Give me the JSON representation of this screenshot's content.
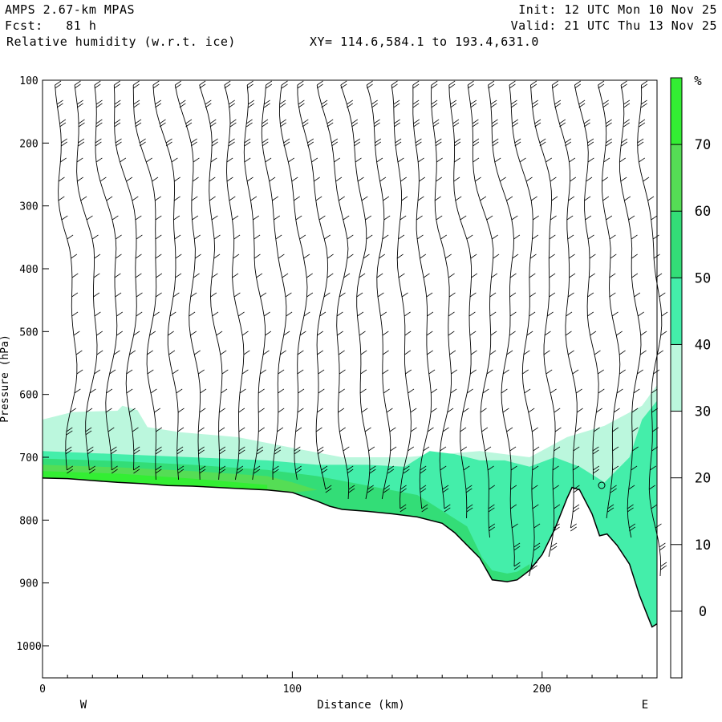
{
  "header": {
    "model": "AMPS 2.67-km MPAS",
    "fcst": "Fcst:   81 h",
    "field": "Relative humidity (w.r.t. ice)",
    "xy": "XY= 114.6,584.1 to 193.4,631.0",
    "init": "Init: 12 UTC Mon 10 Nov 25",
    "valid": "Valid: 21 UTC Thu 13 Nov 25"
  },
  "chart_data": {
    "type": "cross-section",
    "title": "Relative humidity (w.r.t. ice)",
    "xlabel": "Distance (km)",
    "ylabel": "Pressure (hPa)",
    "x_range": [
      0,
      246
    ],
    "y_range": [
      100,
      1050
    ],
    "y_scale": "inverted",
    "x_ticks": [
      "0",
      "100",
      "200"
    ],
    "x_tick_values": [
      0,
      100,
      200
    ],
    "y_ticks": [
      "100",
      "200",
      "300",
      "400",
      "500",
      "600",
      "700",
      "800",
      "900",
      "1000"
    ],
    "y_tick_values": [
      100,
      200,
      300,
      400,
      500,
      600,
      700,
      800,
      900,
      1000
    ],
    "left_end_label": "W",
    "right_end_label": "E",
    "colorbar": {
      "unit": "%",
      "labels": [
        "70",
        "60",
        "50",
        "40",
        "30",
        "20",
        "10",
        "0"
      ],
      "label_values": [
        70,
        60,
        50,
        40,
        30,
        20,
        10,
        0
      ],
      "bins": [
        {
          "min": 70,
          "max": 80,
          "color": "#33ee33"
        },
        {
          "min": 60,
          "max": 70,
          "color": "#55dd55"
        },
        {
          "min": 50,
          "max": 60,
          "color": "#33dd77"
        },
        {
          "min": 40,
          "max": 50,
          "color": "#44eeaa"
        },
        {
          "min": 30,
          "max": 40,
          "color": "#bbf7dd"
        },
        {
          "min": -10,
          "max": 30,
          "color": "#ffffff"
        }
      ]
    },
    "terrain": [
      [
        0,
        733
      ],
      [
        10,
        734
      ],
      [
        20,
        737
      ],
      [
        30,
        740
      ],
      [
        40,
        742
      ],
      [
        50,
        745
      ],
      [
        60,
        746
      ],
      [
        70,
        748
      ],
      [
        80,
        750
      ],
      [
        90,
        752
      ],
      [
        100,
        756
      ],
      [
        105,
        763
      ],
      [
        110,
        770
      ],
      [
        115,
        778
      ],
      [
        120,
        783
      ],
      [
        130,
        786
      ],
      [
        140,
        790
      ],
      [
        150,
        795
      ],
      [
        160,
        805
      ],
      [
        165,
        820
      ],
      [
        170,
        840
      ],
      [
        175,
        860
      ],
      [
        180,
        895
      ],
      [
        186,
        898
      ],
      [
        190,
        895
      ],
      [
        195,
        880
      ],
      [
        200,
        855
      ],
      [
        205,
        815
      ],
      [
        210,
        765
      ],
      [
        212,
        748
      ],
      [
        215,
        752
      ],
      [
        220,
        790
      ],
      [
        223,
        825
      ],
      [
        226,
        822
      ],
      [
        230,
        840
      ],
      [
        235,
        870
      ],
      [
        239,
        920
      ],
      [
        242,
        950
      ],
      [
        244,
        970
      ],
      [
        246,
        965
      ]
    ],
    "rh_regions": [
      {
        "rh": 30,
        "polygon": [
          [
            0,
            640
          ],
          [
            12,
            628
          ],
          [
            30,
            626
          ],
          [
            32,
            618
          ],
          [
            38,
            625
          ],
          [
            42,
            652
          ],
          [
            55,
            660
          ],
          [
            78,
            668
          ],
          [
            100,
            685
          ],
          [
            120,
            700
          ],
          [
            145,
            700
          ],
          [
            175,
            690
          ],
          [
            195,
            700
          ],
          [
            210,
            668
          ],
          [
            225,
            650
          ],
          [
            240,
            618
          ],
          [
            246,
            585
          ],
          [
            246,
            965
          ],
          [
            244,
            970
          ],
          [
            242,
            950
          ],
          [
            239,
            920
          ],
          [
            235,
            870
          ],
          [
            230,
            840
          ],
          [
            226,
            822
          ],
          [
            223,
            825
          ],
          [
            220,
            790
          ],
          [
            215,
            752
          ],
          [
            212,
            748
          ],
          [
            210,
            765
          ],
          [
            205,
            815
          ],
          [
            200,
            855
          ],
          [
            195,
            880
          ],
          [
            190,
            895
          ],
          [
            186,
            898
          ],
          [
            180,
            895
          ],
          [
            175,
            860
          ],
          [
            170,
            840
          ],
          [
            165,
            820
          ],
          [
            160,
            805
          ],
          [
            150,
            795
          ],
          [
            140,
            790
          ],
          [
            130,
            786
          ],
          [
            120,
            783
          ],
          [
            115,
            778
          ],
          [
            110,
            770
          ],
          [
            105,
            763
          ],
          [
            100,
            756
          ],
          [
            90,
            752
          ],
          [
            80,
            750
          ],
          [
            70,
            748
          ],
          [
            60,
            746
          ],
          [
            50,
            745
          ],
          [
            40,
            742
          ],
          [
            30,
            740
          ],
          [
            20,
            737
          ],
          [
            10,
            734
          ],
          [
            0,
            733
          ]
        ]
      },
      {
        "rh": 40,
        "polygon": [
          [
            0,
            690
          ],
          [
            30,
            695
          ],
          [
            60,
            700
          ],
          [
            90,
            705
          ],
          [
            110,
            712
          ],
          [
            130,
            712
          ],
          [
            145,
            715
          ],
          [
            155,
            690
          ],
          [
            165,
            695
          ],
          [
            175,
            705
          ],
          [
            185,
            705
          ],
          [
            195,
            715
          ],
          [
            205,
            700
          ],
          [
            215,
            715
          ],
          [
            225,
            740
          ],
          [
            235,
            700
          ],
          [
            240,
            640
          ],
          [
            246,
            610
          ],
          [
            246,
            965
          ],
          [
            244,
            970
          ],
          [
            242,
            950
          ],
          [
            239,
            920
          ],
          [
            235,
            870
          ],
          [
            230,
            840
          ],
          [
            226,
            822
          ],
          [
            223,
            825
          ],
          [
            220,
            790
          ],
          [
            215,
            752
          ],
          [
            212,
            748
          ],
          [
            210,
            765
          ],
          [
            205,
            815
          ],
          [
            200,
            855
          ],
          [
            195,
            880
          ],
          [
            190,
            895
          ],
          [
            186,
            898
          ],
          [
            180,
            895
          ],
          [
            175,
            860
          ],
          [
            170,
            840
          ],
          [
            165,
            820
          ],
          [
            160,
            805
          ],
          [
            150,
            795
          ],
          [
            140,
            790
          ],
          [
            130,
            786
          ],
          [
            120,
            783
          ],
          [
            115,
            778
          ],
          [
            110,
            770
          ],
          [
            105,
            763
          ],
          [
            100,
            756
          ],
          [
            90,
            752
          ],
          [
            80,
            750
          ],
          [
            70,
            748
          ],
          [
            60,
            746
          ],
          [
            50,
            745
          ],
          [
            40,
            742
          ],
          [
            30,
            740
          ],
          [
            20,
            737
          ],
          [
            10,
            734
          ],
          [
            0,
            733
          ]
        ]
      },
      {
        "rh": 50,
        "polygon": [
          [
            0,
            702
          ],
          [
            30,
            706
          ],
          [
            60,
            712
          ],
          [
            90,
            720
          ],
          [
            110,
            730
          ],
          [
            130,
            745
          ],
          [
            150,
            760
          ],
          [
            160,
            785
          ],
          [
            170,
            810
          ],
          [
            176,
            860
          ],
          [
            180,
            880
          ],
          [
            186,
            885
          ],
          [
            190,
            882
          ],
          [
            195,
            870
          ],
          [
            195,
            880
          ],
          [
            190,
            895
          ],
          [
            186,
            898
          ],
          [
            180,
            895
          ],
          [
            175,
            860
          ],
          [
            170,
            840
          ],
          [
            165,
            820
          ],
          [
            160,
            805
          ],
          [
            150,
            795
          ],
          [
            140,
            790
          ],
          [
            130,
            786
          ],
          [
            120,
            783
          ],
          [
            115,
            778
          ],
          [
            110,
            770
          ],
          [
            105,
            763
          ],
          [
            100,
            756
          ],
          [
            90,
            752
          ],
          [
            80,
            750
          ],
          [
            70,
            748
          ],
          [
            60,
            746
          ],
          [
            50,
            745
          ],
          [
            40,
            742
          ],
          [
            30,
            740
          ],
          [
            20,
            737
          ],
          [
            10,
            734
          ],
          [
            0,
            733
          ]
        ]
      },
      {
        "rh": 60,
        "polygon": [
          [
            0,
            712
          ],
          [
            30,
            716
          ],
          [
            60,
            722
          ],
          [
            90,
            730
          ],
          [
            100,
            740
          ],
          [
            110,
            752
          ],
          [
            100,
            756
          ],
          [
            90,
            752
          ],
          [
            80,
            750
          ],
          [
            70,
            748
          ],
          [
            60,
            746
          ],
          [
            50,
            745
          ],
          [
            40,
            742
          ],
          [
            30,
            740
          ],
          [
            20,
            737
          ],
          [
            10,
            734
          ],
          [
            0,
            733
          ]
        ]
      },
      {
        "rh": 70,
        "polygon": [
          [
            0,
            722
          ],
          [
            30,
            726
          ],
          [
            60,
            734
          ],
          [
            90,
            744
          ],
          [
            90,
            752
          ],
          [
            80,
            750
          ],
          [
            70,
            748
          ],
          [
            60,
            746
          ],
          [
            50,
            745
          ],
          [
            40,
            742
          ],
          [
            30,
            740
          ],
          [
            20,
            737
          ],
          [
            10,
            734
          ],
          [
            0,
            733
          ]
        ]
      }
    ]
  }
}
